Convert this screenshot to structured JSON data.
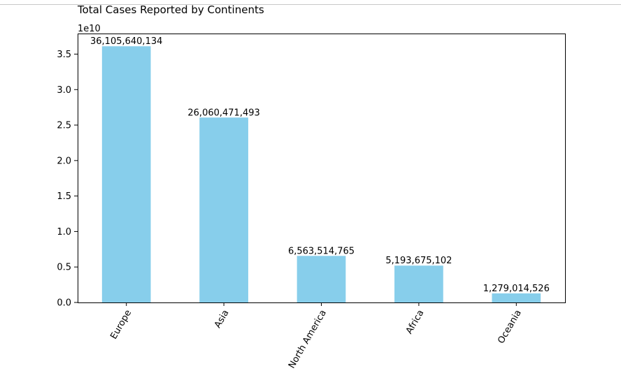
{
  "chart_data": {
    "type": "bar",
    "title": "Total Cases Reported by Continents",
    "xlabel": "",
    "ylabel": "",
    "scale_label": "1e10",
    "categories": [
      "Europe",
      "Asia",
      "North America",
      "Africa",
      "Oceania"
    ],
    "values": [
      36105640134,
      26060471493,
      6563514765,
      5193675102,
      1279014526
    ],
    "data_labels": [
      "36,105,640,134",
      "26,060,471,493",
      "6,563,514,765",
      "5,193,675,102",
      "1,279,014,526"
    ],
    "yticks": [
      "0.0",
      "0.5",
      "1.0",
      "1.5",
      "2.0",
      "2.5",
      "3.0",
      "3.5"
    ],
    "ylim": [
      0,
      37900000000
    ],
    "grid": false,
    "bar_color": "#87ceeb"
  }
}
